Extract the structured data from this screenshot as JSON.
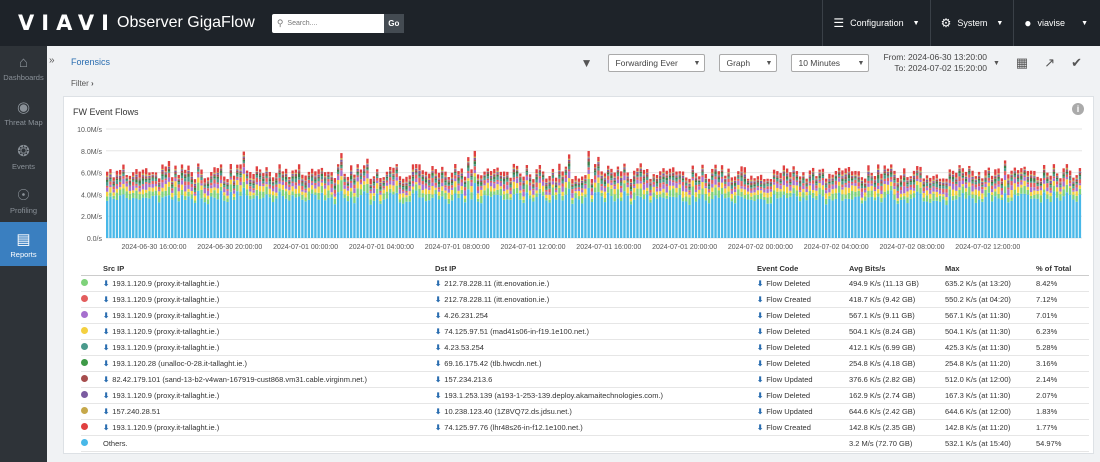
{
  "header": {
    "logo": "VIAVI",
    "app_title": "Observer GigaFlow",
    "search_placeholder": "Search....",
    "go_label": "Go",
    "nav": [
      {
        "label": "Configuration",
        "icon": "sliders-icon"
      },
      {
        "label": "System",
        "icon": "gear-icon"
      },
      {
        "label": "viavise",
        "icon": "user-icon"
      }
    ]
  },
  "sidebar": {
    "items": [
      {
        "label": "Dashboards",
        "icon": "home-icon",
        "active": false
      },
      {
        "label": "Threat Map",
        "icon": "map-pin-icon",
        "active": false
      },
      {
        "label": "Events",
        "icon": "broadcast-icon",
        "active": false
      },
      {
        "label": "Profiling",
        "icon": "eye-icon",
        "active": false
      },
      {
        "label": "Reports",
        "icon": "bar-chart-icon",
        "active": true
      }
    ]
  },
  "page": {
    "breadcrumb": "Forensics",
    "filter_label": "Filter",
    "toolbar": {
      "forwarding": "Forwarding Ever",
      "view": "Graph",
      "interval": "10 Minutes",
      "from": "From: 2024-06-30 13:20:00",
      "to": "To: 2024-07-02 15:20:00"
    }
  },
  "panel": {
    "title": "FW Event Flows"
  },
  "chart_data": {
    "type": "bar",
    "stacked": true,
    "ylim": [
      0,
      10
    ],
    "y_unit": "M/s",
    "yticks": [
      "10.0M/s",
      "8.0M/s",
      "6.0M/s",
      "4.0M/s",
      "2.0M/s",
      "0.0/s"
    ],
    "xticks": [
      "2024-06-30 16:00:00",
      "2024-06-30 20:00:00",
      "2024-07-01 00:00:00",
      "2024-07-01 04:00:00",
      "2024-07-01 08:00:00",
      "2024-07-01 12:00:00",
      "2024-07-01 16:00:00",
      "2024-07-01 20:00:00",
      "2024-07-02 00:00:00",
      "2024-07-02 04:00:00",
      "2024-07-02 08:00:00",
      "2024-07-02 12:00:00"
    ],
    "bars": 300,
    "avg_total": 6.0,
    "series_colors": [
      "#48b8e8",
      "#7ed27a",
      "#f4d03f",
      "#a66fce",
      "#e35d5d",
      "#4a9a8c",
      "#3e7c47",
      "#a64d4d",
      "#7b5ba0",
      "#c6a84a",
      "#e04040"
    ]
  },
  "table": {
    "columns": [
      "Src IP",
      "Dst IP",
      "Event Code",
      "Avg Bits/s",
      "Max",
      "% of Total"
    ],
    "rows": [
      {
        "color": "#7ed27a",
        "src": "193.1.120.9 (proxy.it-tallaght.ie.)",
        "dst": "212.78.228.11 (itt.enovation.ie.)",
        "event": "Flow Deleted",
        "avg": "494.9 K/s (11.13 GB)",
        "max": "635.2 K/s (at 13:20)",
        "pct": "8.42%"
      },
      {
        "color": "#e35d5d",
        "src": "193.1.120.9 (proxy.it-tallaght.ie.)",
        "dst": "212.78.228.11 (itt.enovation.ie.)",
        "event": "Flow Created",
        "avg": "418.7 K/s (9.42 GB)",
        "max": "550.2 K/s (at 04:20)",
        "pct": "7.12%"
      },
      {
        "color": "#a66fce",
        "src": "193.1.120.9 (proxy.it-tallaght.ie.)",
        "dst": "4.26.231.254",
        "event": "Flow Deleted",
        "avg": "567.1 K/s (9.11 GB)",
        "max": "567.1 K/s (at 11:30)",
        "pct": "7.01%"
      },
      {
        "color": "#f4d03f",
        "src": "193.1.120.9 (proxy.it-tallaght.ie.)",
        "dst": "74.125.97.51 (mad41s06-in-f19.1e100.net.)",
        "event": "Flow Deleted",
        "avg": "504.1 K/s (8.24 GB)",
        "max": "504.1 K/s (at 11:30)",
        "pct": "6.23%"
      },
      {
        "color": "#4a9a8c",
        "src": "193.1.120.9 (proxy.it-tallaght.ie.)",
        "dst": "4.23.53.254",
        "event": "Flow Deleted",
        "avg": "412.1 K/s (6.99 GB)",
        "max": "425.3 K/s (at 11:30)",
        "pct": "5.28%"
      },
      {
        "color": "#3e9a47",
        "src": "193.1.120.28 (unalloc-0-28.it-tallaght.ie.)",
        "dst": "69.16.175.42 (tlb.hwcdn.net.)",
        "event": "Flow Deleted",
        "avg": "254.8 K/s (4.18 GB)",
        "max": "254.8 K/s (at 11:20)",
        "pct": "3.16%"
      },
      {
        "color": "#a64d4d",
        "src": "82.42.179.101 (sand-13-b2-v4wan-167919-cust868.vm31.cable.virginm.net.)",
        "dst": "157.234.213.6",
        "event": "Flow Updated",
        "avg": "376.6 K/s (2.82 GB)",
        "max": "512.0 K/s (at 12:00)",
        "pct": "2.14%"
      },
      {
        "color": "#7b5ba0",
        "src": "193.1.120.9 (proxy.it-tallaght.ie.)",
        "dst": "193.1.253.139 (a193-1-253-139.deploy.akamaitechnologies.com.)",
        "event": "Flow Deleted",
        "avg": "162.9 K/s (2.74 GB)",
        "max": "167.3 K/s (at 11:30)",
        "pct": "2.07%"
      },
      {
        "color": "#c6a84a",
        "src": "157.240.28.51",
        "dst": "10.238.123.40 (1Z8VQ72.ds.jdsu.net.)",
        "event": "Flow Updated",
        "avg": "644.6 K/s (2.42 GB)",
        "max": "644.6 K/s (at 12:00)",
        "pct": "1.83%"
      },
      {
        "color": "#e04040",
        "src": "193.1.120.9 (proxy.it-tallaght.ie.)",
        "dst": "74.125.97.76 (lhr48s26-in-f12.1e100.net.)",
        "event": "Flow Created",
        "avg": "142.8 K/s (2.35 GB)",
        "max": "142.8 K/s (at 11:20)",
        "pct": "1.77%"
      },
      {
        "color": "#48b8e8",
        "src": "Others.",
        "dst": "",
        "event": "",
        "avg": "3.2 M/s (72.70 GB)",
        "max": "532.1 K/s (at 15:40)",
        "pct": "54.97%"
      }
    ]
  }
}
